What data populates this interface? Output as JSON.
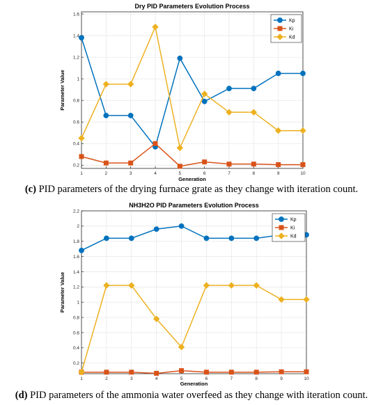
{
  "colors": {
    "kp": "#0072BD",
    "ki": "#D95319",
    "kd": "#EDB120",
    "grid": "#e6e6e6",
    "axis": "#262626"
  },
  "chart_data": [
    {
      "id": "c",
      "type": "line",
      "title": "Dry PID Parameters Evolution Process",
      "xlabel": "Generation",
      "ylabel": "Parameter Value",
      "x": [
        1,
        2,
        3,
        4,
        5,
        6,
        7,
        8,
        9,
        10
      ],
      "xlim": [
        1,
        10
      ],
      "ylim": [
        0.17,
        1.62
      ],
      "yticks": [
        0.2,
        0.4,
        0.6,
        0.8,
        1,
        1.2,
        1.4,
        1.6
      ],
      "ytick_labels": [
        "0.2",
        "0.4",
        "0.6",
        "0.8",
        "1",
        "1.2",
        "1.4",
        "1.6"
      ],
      "grid": true,
      "legend_position": "top-right",
      "series": [
        {
          "name": "Kp",
          "marker": "circle",
          "color": "#0072BD",
          "values": [
            1.38,
            0.66,
            0.66,
            0.37,
            1.19,
            0.79,
            0.91,
            0.91,
            1.05,
            1.05
          ]
        },
        {
          "name": "Ki",
          "marker": "square",
          "color": "#D95319",
          "values": [
            0.28,
            0.22,
            0.22,
            0.4,
            0.19,
            0.23,
            0.21,
            0.21,
            0.205,
            0.205
          ]
        },
        {
          "name": "Kd",
          "marker": "diamond",
          "color": "#EDB120",
          "values": [
            0.45,
            0.95,
            0.95,
            1.48,
            0.36,
            0.86,
            0.69,
            0.69,
            0.52,
            0.52
          ]
        }
      ]
    },
    {
      "id": "d",
      "type": "line",
      "title": "NH3H2O PID Parameters Evolution Process",
      "xlabel": "Generation",
      "ylabel": "Parameter Value",
      "x": [
        1,
        2,
        3,
        4,
        5,
        6,
        7,
        8,
        9,
        10
      ],
      "xlim": [
        1,
        10
      ],
      "ylim": [
        0.06,
        2.2
      ],
      "yticks": [
        0.2,
        0.4,
        0.6,
        0.8,
        1,
        1.2,
        1.4,
        1.6,
        1.8,
        2,
        2.2
      ],
      "ytick_labels": [
        "0.2",
        "0.4",
        "0.6",
        "0.8",
        "1",
        "1.2",
        "1.4",
        "1.6",
        "1.8",
        "2",
        "2.2"
      ],
      "grid": true,
      "legend_position": "top-right",
      "series": [
        {
          "name": "Kp",
          "marker": "circle",
          "color": "#0072BD",
          "values": [
            1.68,
            1.84,
            1.84,
            1.96,
            2.0,
            1.84,
            1.84,
            1.84,
            1.885,
            1.885
          ]
        },
        {
          "name": "Ki",
          "marker": "square",
          "color": "#D95319",
          "values": [
            0.08,
            0.08,
            0.08,
            0.065,
            0.1,
            0.08,
            0.08,
            0.08,
            0.085,
            0.085
          ]
        },
        {
          "name": "Kd",
          "marker": "diamond",
          "color": "#EDB120",
          "values": [
            0.08,
            1.22,
            1.22,
            0.78,
            0.41,
            1.22,
            1.22,
            1.22,
            1.035,
            1.035
          ]
        }
      ]
    }
  ],
  "captions": {
    "c": {
      "label": "(c)",
      "text": " PID parameters of the drying furnace grate as they change with iteration count."
    },
    "d": {
      "label": "(d)",
      "text": " PID parameters of the ammonia water overfeed as they change with iteration count."
    }
  }
}
